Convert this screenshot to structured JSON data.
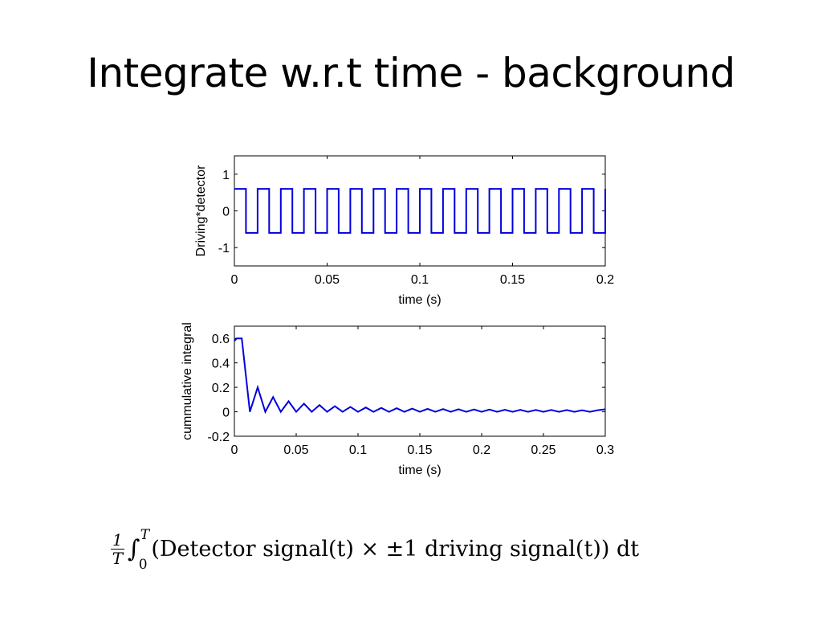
{
  "title": "Integrate w.r.t time  - background",
  "formula": {
    "frac_num": "1",
    "frac_den": "T",
    "integral_sign": "∫",
    "upper_limit": "T",
    "lower_limit": "0",
    "body": "(Detector signal(t)  ×  ±1 driving signal(t)) dt"
  },
  "line_color": "#0000dd",
  "chart_data": [
    {
      "type": "line",
      "xlabel": "time (s)",
      "ylabel": "Driving*detector",
      "xlim": [
        0,
        0.2
      ],
      "ylim": [
        -1.5,
        1.5
      ],
      "xticks": [
        0,
        0.05,
        0.1,
        0.15,
        0.2
      ],
      "xtick_labels": [
        "0",
        "0.05",
        "0.1",
        "0.15",
        "0.2"
      ],
      "yticks": [
        1,
        0,
        -1
      ],
      "ytick_labels": [
        "1",
        "0",
        "-1"
      ],
      "grid": false,
      "series": [
        {
          "kind": "square_wave",
          "high": 0.6,
          "low": -0.6,
          "period": 0.0125,
          "high_duty": 0.5,
          "x_start": 0,
          "x_end": 0.2
        }
      ]
    },
    {
      "type": "line",
      "xlabel": "time (s)",
      "ylabel": "cummulative integral",
      "xlim": [
        0,
        0.3
      ],
      "ylim": [
        -0.2,
        0.7
      ],
      "xticks": [
        0,
        0.05,
        0.1,
        0.15,
        0.2,
        0.25,
        0.3
      ],
      "xtick_labels": [
        "0",
        "0.05",
        "0.1",
        "0.15",
        "0.2",
        "0.25",
        "0.3"
      ],
      "yticks": [
        0.6,
        0.4,
        0.2,
        0,
        -0.2
      ],
      "ytick_labels": [
        "0.6",
        "0.4",
        "0.2",
        "0",
        "-0.2"
      ],
      "grid": false,
      "series": [
        {
          "kind": "cumulative_average",
          "x": [
            0,
            0.002,
            0.006,
            0.0125,
            0.0188,
            0.025,
            0.0313,
            0.0375,
            0.0438,
            0.05,
            0.0563,
            0.0625,
            0.0688,
            0.075,
            0.0813,
            0.0875,
            0.0938,
            0.1,
            0.1063,
            0.1125,
            0.1188,
            0.125,
            0.1313,
            0.1375,
            0.1438,
            0.15,
            0.1563,
            0.1625,
            0.1688,
            0.175,
            0.1813,
            0.1875,
            0.1938,
            0.2,
            0.2063,
            0.2125,
            0.2188,
            0.225,
            0.2313,
            0.2375,
            0.2438,
            0.25,
            0.2563,
            0.2625,
            0.2688,
            0.275,
            0.2813,
            0.2875,
            0.2938,
            0.3
          ],
          "y": [
            0.58,
            0.6,
            0.6,
            0.0,
            0.2,
            0.0,
            0.12,
            0.0,
            0.086,
            0.0,
            0.067,
            0.0,
            0.055,
            0.0,
            0.046,
            0.0,
            0.04,
            0.0,
            0.035,
            0.0,
            0.032,
            0.0,
            0.029,
            0.0,
            0.026,
            0.0,
            0.024,
            0.0,
            0.022,
            0.0,
            0.021,
            0.0,
            0.019,
            0.0,
            0.018,
            0.0,
            0.017,
            0.0,
            0.016,
            0.0,
            0.015,
            0.0,
            0.015,
            0.0,
            0.014,
            0.0,
            0.013,
            0.0,
            0.013,
            0.02
          ]
        }
      ]
    }
  ]
}
